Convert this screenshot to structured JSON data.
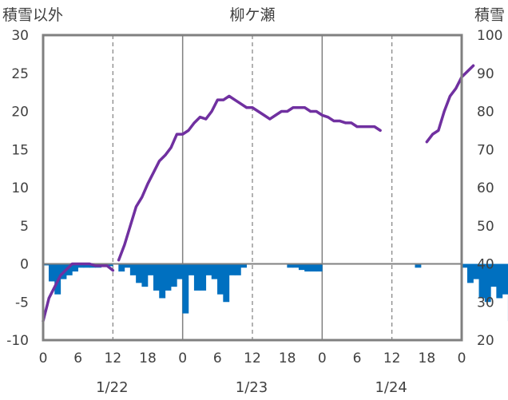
{
  "chart_data": {
    "type": "bar+line",
    "title": "柳ケ瀬",
    "left_axis_label": "積雪以外",
    "right_axis_label": "積雪",
    "y_left": {
      "min": -10,
      "max": 30,
      "step": 5,
      "ticks": [
        "30",
        "25",
        "20",
        "15",
        "10",
        "5",
        "0",
        "-5",
        "-10"
      ]
    },
    "y_right": {
      "min": 20,
      "max": 100,
      "step": 10,
      "ticks": [
        "100",
        "90",
        "80",
        "70",
        "60",
        "50",
        "40",
        "30",
        "20"
      ]
    },
    "x_hour_labels": [
      "0",
      "6",
      "12",
      "18",
      "0",
      "6",
      "12",
      "18",
      "0",
      "6",
      "12",
      "18",
      "0"
    ],
    "x_date_labels": [
      "1/22",
      "1/23",
      "1/24"
    ],
    "bars": {
      "axis": "left",
      "color": "#0070c0",
      "start_hour": 0,
      "values": [
        -0.2,
        -2.3,
        -4,
        -2,
        -1.5,
        -1,
        -0.5,
        -0.5,
        -0.5,
        -0.5,
        -0.3,
        -0.3,
        0,
        -1,
        -0.5,
        -1.5,
        -2.5,
        -3,
        -1.5,
        -3.5,
        -4.5,
        -3.5,
        -3,
        -2,
        -6.5,
        -1.5,
        -3.5,
        -3.5,
        -1.5,
        -2,
        -4,
        -5,
        -1.5,
        -1.5,
        -0.5,
        0,
        0,
        0,
        0,
        0,
        0,
        0,
        -0.5,
        -0.5,
        -0.8,
        -1,
        -1,
        -1,
        0,
        0,
        0,
        0,
        0,
        0,
        0,
        0,
        0,
        0,
        0,
        0,
        0,
        0,
        0,
        0,
        -0.5,
        0,
        0,
        0,
        0,
        0,
        0,
        0,
        -0.5,
        -2.5,
        -2,
        -4.5,
        -5,
        -3,
        -4.5,
        -4,
        -7.5
      ]
    },
    "snow_depth": {
      "axis": "right",
      "color": "#7030a0",
      "segments": [
        {
          "start_hour": 0,
          "values": [
            25,
            31,
            34,
            37,
            38.5,
            40,
            40,
            40,
            40,
            39.5,
            39.5,
            39.5,
            38.3
          ]
        },
        {
          "start_hour": 13,
          "values": [
            41,
            45,
            50,
            55,
            57.5,
            61,
            64,
            67,
            68.5,
            70.5,
            74,
            74,
            75,
            77,
            78.5,
            78,
            80,
            83,
            83,
            84,
            83,
            82,
            81,
            81,
            80,
            79,
            78,
            79,
            80,
            80,
            81,
            81,
            81,
            80,
            80,
            79,
            78.5,
            77.5,
            77.5,
            77,
            77,
            76,
            76,
            76,
            76,
            75
          ]
        },
        {
          "start_hour": 66,
          "values": [
            72,
            74,
            75,
            80,
            84,
            86,
            89,
            90.5,
            92
          ]
        }
      ]
    }
  }
}
